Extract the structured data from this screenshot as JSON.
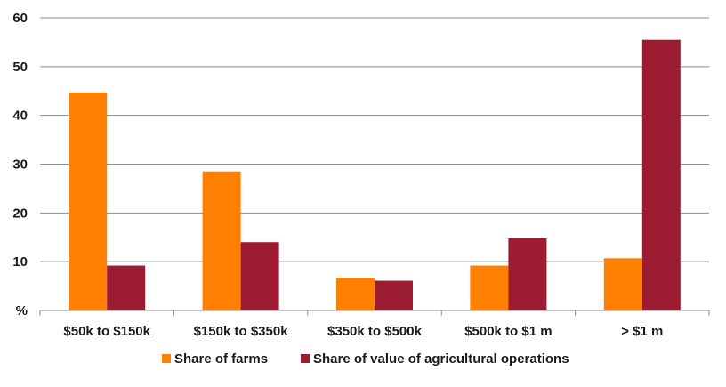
{
  "chart_data": {
    "type": "bar",
    "title": "",
    "xlabel": "",
    "ylabel": "",
    "ylim": [
      0,
      60
    ],
    "yticks": [
      {
        "value": 0,
        "label": "%"
      },
      {
        "value": 10,
        "label": "10"
      },
      {
        "value": 20,
        "label": "20"
      },
      {
        "value": 30,
        "label": "30"
      },
      {
        "value": 40,
        "label": "40"
      },
      {
        "value": 50,
        "label": "50"
      },
      {
        "value": 60,
        "label": "60"
      }
    ],
    "grid": true,
    "legend_position": "bottom",
    "categories": [
      "$50k to $150k",
      "$150k to $350k",
      "$350k to $500k",
      "$500k to $1 m",
      "> $1 m"
    ],
    "series": [
      {
        "name": "Share of farms",
        "color": "#ff7f00",
        "values": [
          44.7,
          28.5,
          6.7,
          9.2,
          10.7
        ]
      },
      {
        "name": "Share of value of agricultural operations",
        "color": "#9b1b30",
        "values": [
          9.2,
          14.0,
          6.1,
          14.8,
          55.5
        ]
      }
    ]
  }
}
